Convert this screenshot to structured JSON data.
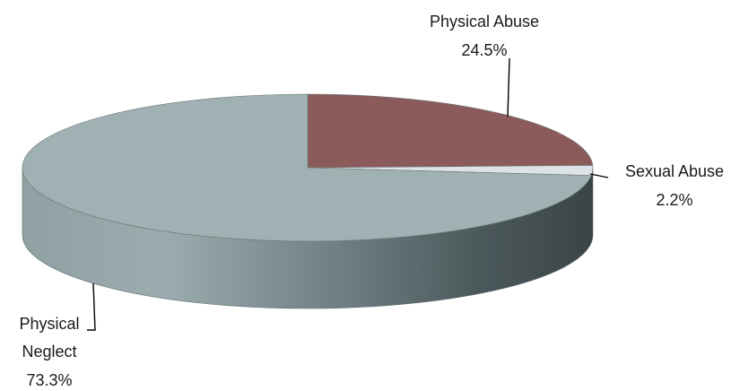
{
  "chart_data": {
    "type": "pie",
    "style": "3d",
    "title": "",
    "slices": [
      {
        "label": "Physical Abuse",
        "value": 24.5,
        "value_label": "24.5%",
        "color": "#8b5a5a"
      },
      {
        "label": "Sexual Abuse",
        "value": 2.2,
        "value_label": "2.2%",
        "color": "#dde2e6"
      },
      {
        "label": "Physical Neglect",
        "value": 73.3,
        "value_label": "73.3%",
        "color": "#9fb1b3"
      }
    ],
    "legend": "none",
    "data_labels": "outside with leader lines"
  }
}
